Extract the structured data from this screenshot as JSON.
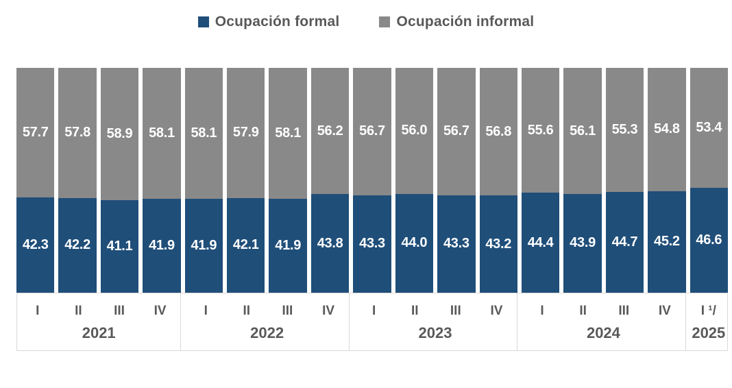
{
  "legend": {
    "items": [
      {
        "label": "Ocupación formal",
        "color": "#1F4E79",
        "icon": "legend-square"
      },
      {
        "label": "Ocupación informal",
        "color": "#898989",
        "icon": "legend-square"
      }
    ]
  },
  "chart_data": {
    "type": "bar",
    "stacked": true,
    "percent_stacked_total": 100,
    "title": "",
    "xlabel": "",
    "ylabel": "",
    "ylim": [
      0,
      100
    ],
    "grid": false,
    "legend_position": "top",
    "categories": [
      "2021-I",
      "2021-II",
      "2021-III",
      "2021-IV",
      "2022-I",
      "2022-II",
      "2022-III",
      "2022-IV",
      "2023-I",
      "2023-II",
      "2023-III",
      "2023-IV",
      "2024-I",
      "2024-II",
      "2024-III",
      "2024-IV",
      "2025-I"
    ],
    "series": [
      {
        "name": "Ocupación formal",
        "color": "#1F4E79",
        "values": [
          42.3,
          42.2,
          41.1,
          41.9,
          41.9,
          42.1,
          41.9,
          43.8,
          43.3,
          44.0,
          43.3,
          43.2,
          44.4,
          43.9,
          44.7,
          45.2,
          46.6
        ],
        "labels": [
          "42.3",
          "42.2",
          "41.1",
          "41.9",
          "41.9",
          "42.1",
          "41.9",
          "43.8",
          "43.3",
          "44.0",
          "43.3",
          "43.2",
          "44.4",
          "43.9",
          "44.7",
          "45.2",
          "46.6"
        ]
      },
      {
        "name": "Ocupación informal",
        "color": "#898989",
        "values": [
          57.7,
          57.8,
          58.9,
          58.1,
          58.1,
          57.9,
          58.1,
          56.2,
          56.7,
          56.0,
          56.7,
          56.8,
          55.6,
          56.1,
          55.3,
          54.8,
          53.4
        ],
        "labels": [
          "57.7",
          "57.8",
          "58.9",
          "58.1",
          "58.1",
          "57.9",
          "58.1",
          "56.2",
          "56.7",
          "56.0",
          "56.7",
          "56.8",
          "55.6",
          "56.1",
          "55.3",
          "54.8",
          "53.4"
        ]
      }
    ]
  },
  "xaxis": {
    "groups": [
      {
        "year": "2021",
        "quarters": [
          "I",
          "II",
          "III",
          "IV"
        ]
      },
      {
        "year": "2022",
        "quarters": [
          "I",
          "II",
          "III",
          "IV"
        ]
      },
      {
        "year": "2023",
        "quarters": [
          "I",
          "II",
          "III",
          "IV"
        ]
      },
      {
        "year": "2024",
        "quarters": [
          "I",
          "II",
          "III",
          "IV"
        ]
      },
      {
        "year": "2025",
        "quarters": [
          "I ¹/"
        ]
      }
    ]
  }
}
